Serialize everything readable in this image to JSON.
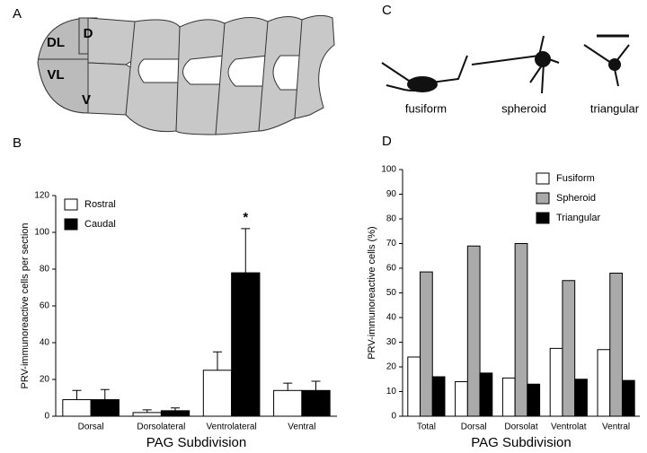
{
  "panels": {
    "a": {
      "label": "A",
      "regions": [
        "DL",
        "D",
        "VL",
        "V"
      ]
    },
    "c": {
      "label": "C",
      "cells": [
        "fusiform",
        "spheroid",
        "triangular"
      ]
    }
  },
  "chart_data": [
    {
      "type": "bar",
      "panel": "B",
      "ylabel": "PRV-immunoreactive cells per section",
      "xlabel": "PAG Subdivision",
      "categories": [
        "Dorsal",
        "Dorsolateral",
        "Ventrolateral",
        "Ventral"
      ],
      "series": [
        {
          "name": "Rostral",
          "color": "#ffffff",
          "values": [
            9,
            2,
            25,
            14
          ],
          "errors": [
            5,
            1.5,
            10,
            4
          ]
        },
        {
          "name": "Caudal",
          "color": "#000000",
          "values": [
            9,
            3,
            78,
            14
          ],
          "errors": [
            5.5,
            1.5,
            24,
            5
          ]
        }
      ],
      "annotation": "*",
      "ylim": [
        0,
        120
      ],
      "yticks": [
        0,
        20,
        40,
        60,
        80,
        100,
        120
      ],
      "legend": "upper left"
    },
    {
      "type": "bar",
      "panel": "D",
      "ylabel": "PRV-immunoreactive cells (%)",
      "xlabel": "PAG Subdivision",
      "categories": [
        "Total",
        "Dorsal",
        "Dorsolat",
        "Ventrolat",
        "Ventral"
      ],
      "series": [
        {
          "name": "Fusiform",
          "color": "#ffffff",
          "values": [
            24,
            14,
            15.5,
            27.5,
            27
          ]
        },
        {
          "name": "Spheroid",
          "color": "#aaaaaa",
          "values": [
            58.5,
            69,
            70,
            55,
            58
          ]
        },
        {
          "name": "Triangular",
          "color": "#000000",
          "values": [
            16,
            17.5,
            13,
            15,
            14.5
          ]
        }
      ],
      "ylim": [
        0,
        100
      ],
      "yticks": [
        0,
        10,
        20,
        30,
        40,
        50,
        60,
        70,
        80,
        90,
        100
      ],
      "legend": "upper right"
    }
  ]
}
